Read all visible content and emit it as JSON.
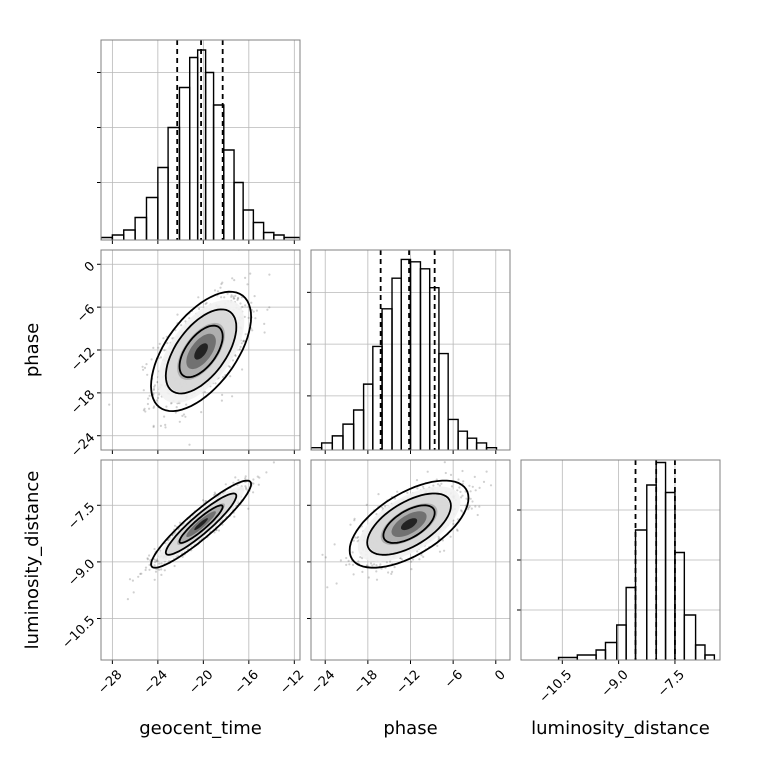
{
  "chart_data": {
    "type": "corner",
    "parameters": [
      {
        "name": "geocent_time",
        "label": "geocent_time",
        "range": [
          -29,
          -11.5
        ],
        "ticks": [
          -28,
          -24,
          -20,
          -16,
          -12
        ],
        "tick_labels": [
          "−28",
          "−24",
          "−20",
          "−16",
          "−12"
        ],
        "quantiles": [
          -22.3,
          -20.2,
          -18.3
        ],
        "hist_bins": [
          {
            "x0": -29.0,
            "x1": -28.0,
            "count": 1
          },
          {
            "x0": -28.0,
            "x1": -27.0,
            "count": 2
          },
          {
            "x0": -27.0,
            "x1": -26.0,
            "count": 4
          },
          {
            "x0": -26.0,
            "x1": -25.0,
            "count": 9
          },
          {
            "x0": -25.0,
            "x1": -24.0,
            "count": 17
          },
          {
            "x0": -24.0,
            "x1": -23.1,
            "count": 29
          },
          {
            "x0": -23.1,
            "x1": -22.1,
            "count": 45
          },
          {
            "x0": -22.1,
            "x1": -21.2,
            "count": 61
          },
          {
            "x0": -21.2,
            "x1": -20.5,
            "count": 73
          },
          {
            "x0": -20.5,
            "x1": -19.8,
            "count": 76
          },
          {
            "x0": -19.8,
            "x1": -19.1,
            "count": 67
          },
          {
            "x0": -19.1,
            "x1": -18.2,
            "count": 54
          },
          {
            "x0": -18.2,
            "x1": -17.3,
            "count": 36
          },
          {
            "x0": -17.3,
            "x1": -16.5,
            "count": 23
          },
          {
            "x0": -16.5,
            "x1": -15.6,
            "count": 12
          },
          {
            "x0": -15.6,
            "x1": -14.7,
            "count": 7
          },
          {
            "x0": -14.7,
            "x1": -13.8,
            "count": 3
          },
          {
            "x0": -13.8,
            "x1": -12.9,
            "count": 2
          },
          {
            "x0": -12.9,
            "x1": -11.5,
            "count": 1
          }
        ],
        "hist_ymax": 80,
        "hist_ygrid": [
          23,
          45,
          67
        ]
      },
      {
        "name": "phase",
        "label": "phase",
        "range": [
          -26,
          2
        ],
        "ticks": [
          -24,
          -18,
          -12,
          -6,
          0
        ],
        "tick_labels": [
          "−24",
          "−18",
          "−12",
          "−6",
          "0"
        ],
        "quantiles": [
          -16.2,
          -12.2,
          -8.6
        ],
        "hist_bins": [
          {
            "x0": -26.0,
            "x1": -24.5,
            "count": 1
          },
          {
            "x0": -24.5,
            "x1": -23.0,
            "count": 3
          },
          {
            "x0": -23.0,
            "x1": -21.5,
            "count": 6
          },
          {
            "x0": -21.5,
            "x1": -20.0,
            "count": 11
          },
          {
            "x0": -20.0,
            "x1": -18.6,
            "count": 17
          },
          {
            "x0": -18.6,
            "x1": -17.3,
            "count": 28
          },
          {
            "x0": -17.3,
            "x1": -16.0,
            "count": 44
          },
          {
            "x0": -16.0,
            "x1": -14.6,
            "count": 60
          },
          {
            "x0": -14.6,
            "x1": -13.3,
            "count": 73
          },
          {
            "x0": -13.3,
            "x1": -12.0,
            "count": 81
          },
          {
            "x0": -12.0,
            "x1": -10.6,
            "count": 80
          },
          {
            "x0": -10.6,
            "x1": -9.3,
            "count": 77
          },
          {
            "x0": -9.3,
            "x1": -8.0,
            "count": 69
          },
          {
            "x0": -8.0,
            "x1": -6.7,
            "count": 41
          },
          {
            "x0": -6.7,
            "x1": -5.3,
            "count": 13
          },
          {
            "x0": -5.3,
            "x1": -4.0,
            "count": 8
          },
          {
            "x0": -4.0,
            "x1": -2.7,
            "count": 5
          },
          {
            "x0": -2.7,
            "x1": -1.3,
            "count": 3
          },
          {
            "x0": -1.3,
            "x1": 0.1,
            "count": 1
          }
        ],
        "hist_ymax": 85,
        "hist_ygrid": [
          23,
          45,
          67
        ]
      },
      {
        "name": "luminosity_distance",
        "label": "luminosity_distance",
        "range": [
          -11.6,
          -6.3
        ],
        "ticks": [
          -10.5,
          -9.0,
          -7.5
        ],
        "tick_labels": [
          "−10.5",
          "−9.0",
          "−7.5"
        ],
        "quantiles": [
          -8.55,
          -8.0,
          -7.5
        ],
        "hist_bins": [
          {
            "x0": -10.6,
            "x1": -10.1,
            "count": 1
          },
          {
            "x0": -10.1,
            "x1": -9.6,
            "count": 2
          },
          {
            "x0": -9.6,
            "x1": -9.35,
            "count": 4
          },
          {
            "x0": -9.35,
            "x1": -9.05,
            "count": 7
          },
          {
            "x0": -9.05,
            "x1": -8.8,
            "count": 14
          },
          {
            "x0": -8.8,
            "x1": -8.55,
            "count": 29
          },
          {
            "x0": -8.55,
            "x1": -8.25,
            "count": 52
          },
          {
            "x0": -8.25,
            "x1": -8.0,
            "count": 70
          },
          {
            "x0": -8.0,
            "x1": -7.75,
            "count": 79
          },
          {
            "x0": -7.75,
            "x1": -7.5,
            "count": 67
          },
          {
            "x0": -7.5,
            "x1": -7.25,
            "count": 43
          },
          {
            "x0": -7.25,
            "x1": -6.95,
            "count": 18
          },
          {
            "x0": -6.95,
            "x1": -6.7,
            "count": 6
          },
          {
            "x0": -6.7,
            "x1": -6.45,
            "count": 2
          }
        ],
        "hist_ymax": 80,
        "hist_ygrid": [
          20,
          40,
          60
        ]
      }
    ],
    "correlations": {
      "phase|geocent_time": 0.58,
      "luminosity_distance|geocent_time": 0.92,
      "luminosity_distance|phase": 0.6
    },
    "grid": true,
    "colors": {
      "line": "#000000",
      "frame": "#808080",
      "grid": "#b8b8b8",
      "scatter": "#555555"
    }
  }
}
